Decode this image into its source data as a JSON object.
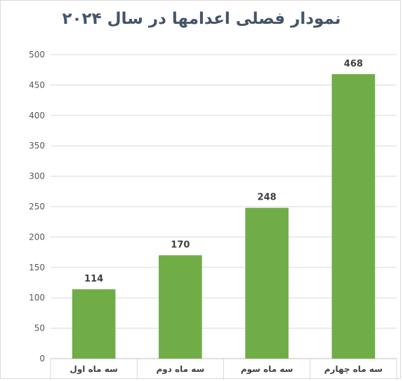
{
  "chart_data": {
    "type": "bar",
    "title": "نمودار فصلی اعدامها در سال ۲۰۲۴",
    "categories": [
      "سه ماه اول",
      "سه ماه دوم",
      "سه ماه سوم",
      "سه ماه چهارم"
    ],
    "values": [
      114,
      170,
      248,
      468
    ],
    "yticks": [
      "0",
      "50",
      "100",
      "150",
      "200",
      "250",
      "300",
      "350",
      "400",
      "450",
      "500"
    ],
    "ylim": [
      0,
      500
    ],
    "grid": true,
    "bar_color": "#70ad47",
    "grid_color": "#d9d9d9"
  }
}
